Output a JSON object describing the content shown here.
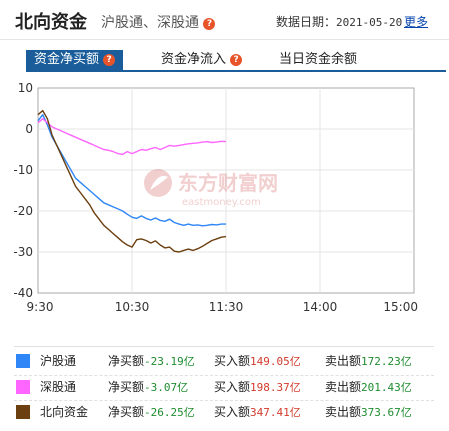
{
  "header": {
    "title": "北向资金",
    "subtitle": "沪股通、深股通",
    "date_label": "数据日期：",
    "date_value": "2021-05-20",
    "more_link": "更多",
    "help_glyph": "?"
  },
  "tabs": [
    {
      "label": "资金净买额",
      "active": true
    },
    {
      "label": "资金净流入",
      "active": false
    },
    {
      "label": "当日资金余额",
      "active": false
    }
  ],
  "watermark": {
    "brand": "东方财富网",
    "domain": "eastmoney.com"
  },
  "colors": {
    "hgt": "#2f86f6",
    "sgt": "#ff66ff",
    "north": "#6b3f10",
    "green_value": "#1e8c2e",
    "red_value": "#d23a2c",
    "tab_active": "#1a5d9a"
  },
  "chart_data": {
    "type": "line",
    "x_ticks": [
      "9:30",
      "10:30",
      "11:30",
      "14:00",
      "15:00"
    ],
    "y_ticks": [
      10,
      0,
      -10,
      -20,
      -30,
      -40
    ],
    "ylim": [
      -40,
      10
    ],
    "x_unit": "minutes after 9:30 (trading session, 240 min)",
    "x": [
      0,
      3,
      6,
      9,
      12,
      15,
      18,
      21,
      24,
      27,
      30,
      33,
      36,
      39,
      42,
      45,
      48,
      51,
      54,
      57,
      60,
      63,
      66,
      69,
      72,
      75,
      78,
      81,
      84,
      87,
      90,
      93,
      96,
      99,
      102,
      105,
      108,
      111,
      114,
      117,
      120
    ],
    "series": [
      {
        "name": "沪股通",
        "color": "#2f86f6",
        "values": [
          2,
          3.5,
          1,
          -2,
          -4,
          -6,
          -8,
          -10,
          -12,
          -13,
          -14,
          -15,
          -16,
          -17,
          -18,
          -18.5,
          -19,
          -19.5,
          -20,
          -20.8,
          -21.5,
          -21.8,
          -21.2,
          -21.8,
          -22.2,
          -21.7,
          -22.3,
          -22.5,
          -22,
          -22.8,
          -23.2,
          -23.5,
          -23.2,
          -23.5,
          -23.4,
          -23.6,
          -23.5,
          -23.3,
          -23.4,
          -23.2,
          -23.19
        ]
      },
      {
        "name": "深股通",
        "color": "#ff66ff",
        "values": [
          1.5,
          2.5,
          1.5,
          0.5,
          0,
          -0.5,
          -1,
          -1.5,
          -2,
          -2.5,
          -3,
          -3.5,
          -4,
          -4.5,
          -5,
          -5.2,
          -5.5,
          -6,
          -6.2,
          -5.5,
          -6,
          -5.5,
          -5,
          -5.2,
          -4.8,
          -4.5,
          -5,
          -4.5,
          -4,
          -4.2,
          -4,
          -3.8,
          -3.6,
          -3.5,
          -3.4,
          -3.2,
          -3.1,
          -3.3,
          -3.2,
          -3,
          -3.07
        ]
      },
      {
        "name": "北向资金",
        "color": "#6b3f10",
        "values": [
          3.5,
          4.5,
          2.5,
          -1.5,
          -4,
          -6.5,
          -9,
          -11.5,
          -14,
          -15.5,
          -17,
          -18.5,
          -20.5,
          -22,
          -23.5,
          -24.5,
          -25.5,
          -26.5,
          -27.5,
          -28.3,
          -28.8,
          -27,
          -26.8,
          -27.2,
          -27.8,
          -27.3,
          -28.3,
          -29,
          -28.8,
          -29.8,
          -30,
          -29.6,
          -29.3,
          -29.6,
          -29.2,
          -28.6,
          -27.9,
          -27.2,
          -26.8,
          -26.4,
          -26.25
        ]
      }
    ]
  },
  "legend": [
    {
      "name": "沪股通",
      "color": "#2f86f6",
      "net_label": "净买额",
      "net_value": "-23.19亿",
      "buy_label": "买入额",
      "buy_value": "149.05亿",
      "sell_label": "卖出额",
      "sell_value": "172.23亿"
    },
    {
      "name": "深股通",
      "color": "#ff66ff",
      "net_label": "净买额",
      "net_value": "-3.07亿",
      "buy_label": "买入额",
      "buy_value": "198.37亿",
      "sell_label": "卖出额",
      "sell_value": "201.43亿"
    },
    {
      "name": "北向资金",
      "color": "#6b3f10",
      "net_label": "净买额",
      "net_value": "-26.25亿",
      "buy_label": "买入额",
      "buy_value": "347.41亿",
      "sell_label": "卖出额",
      "sell_value": "373.67亿"
    }
  ]
}
